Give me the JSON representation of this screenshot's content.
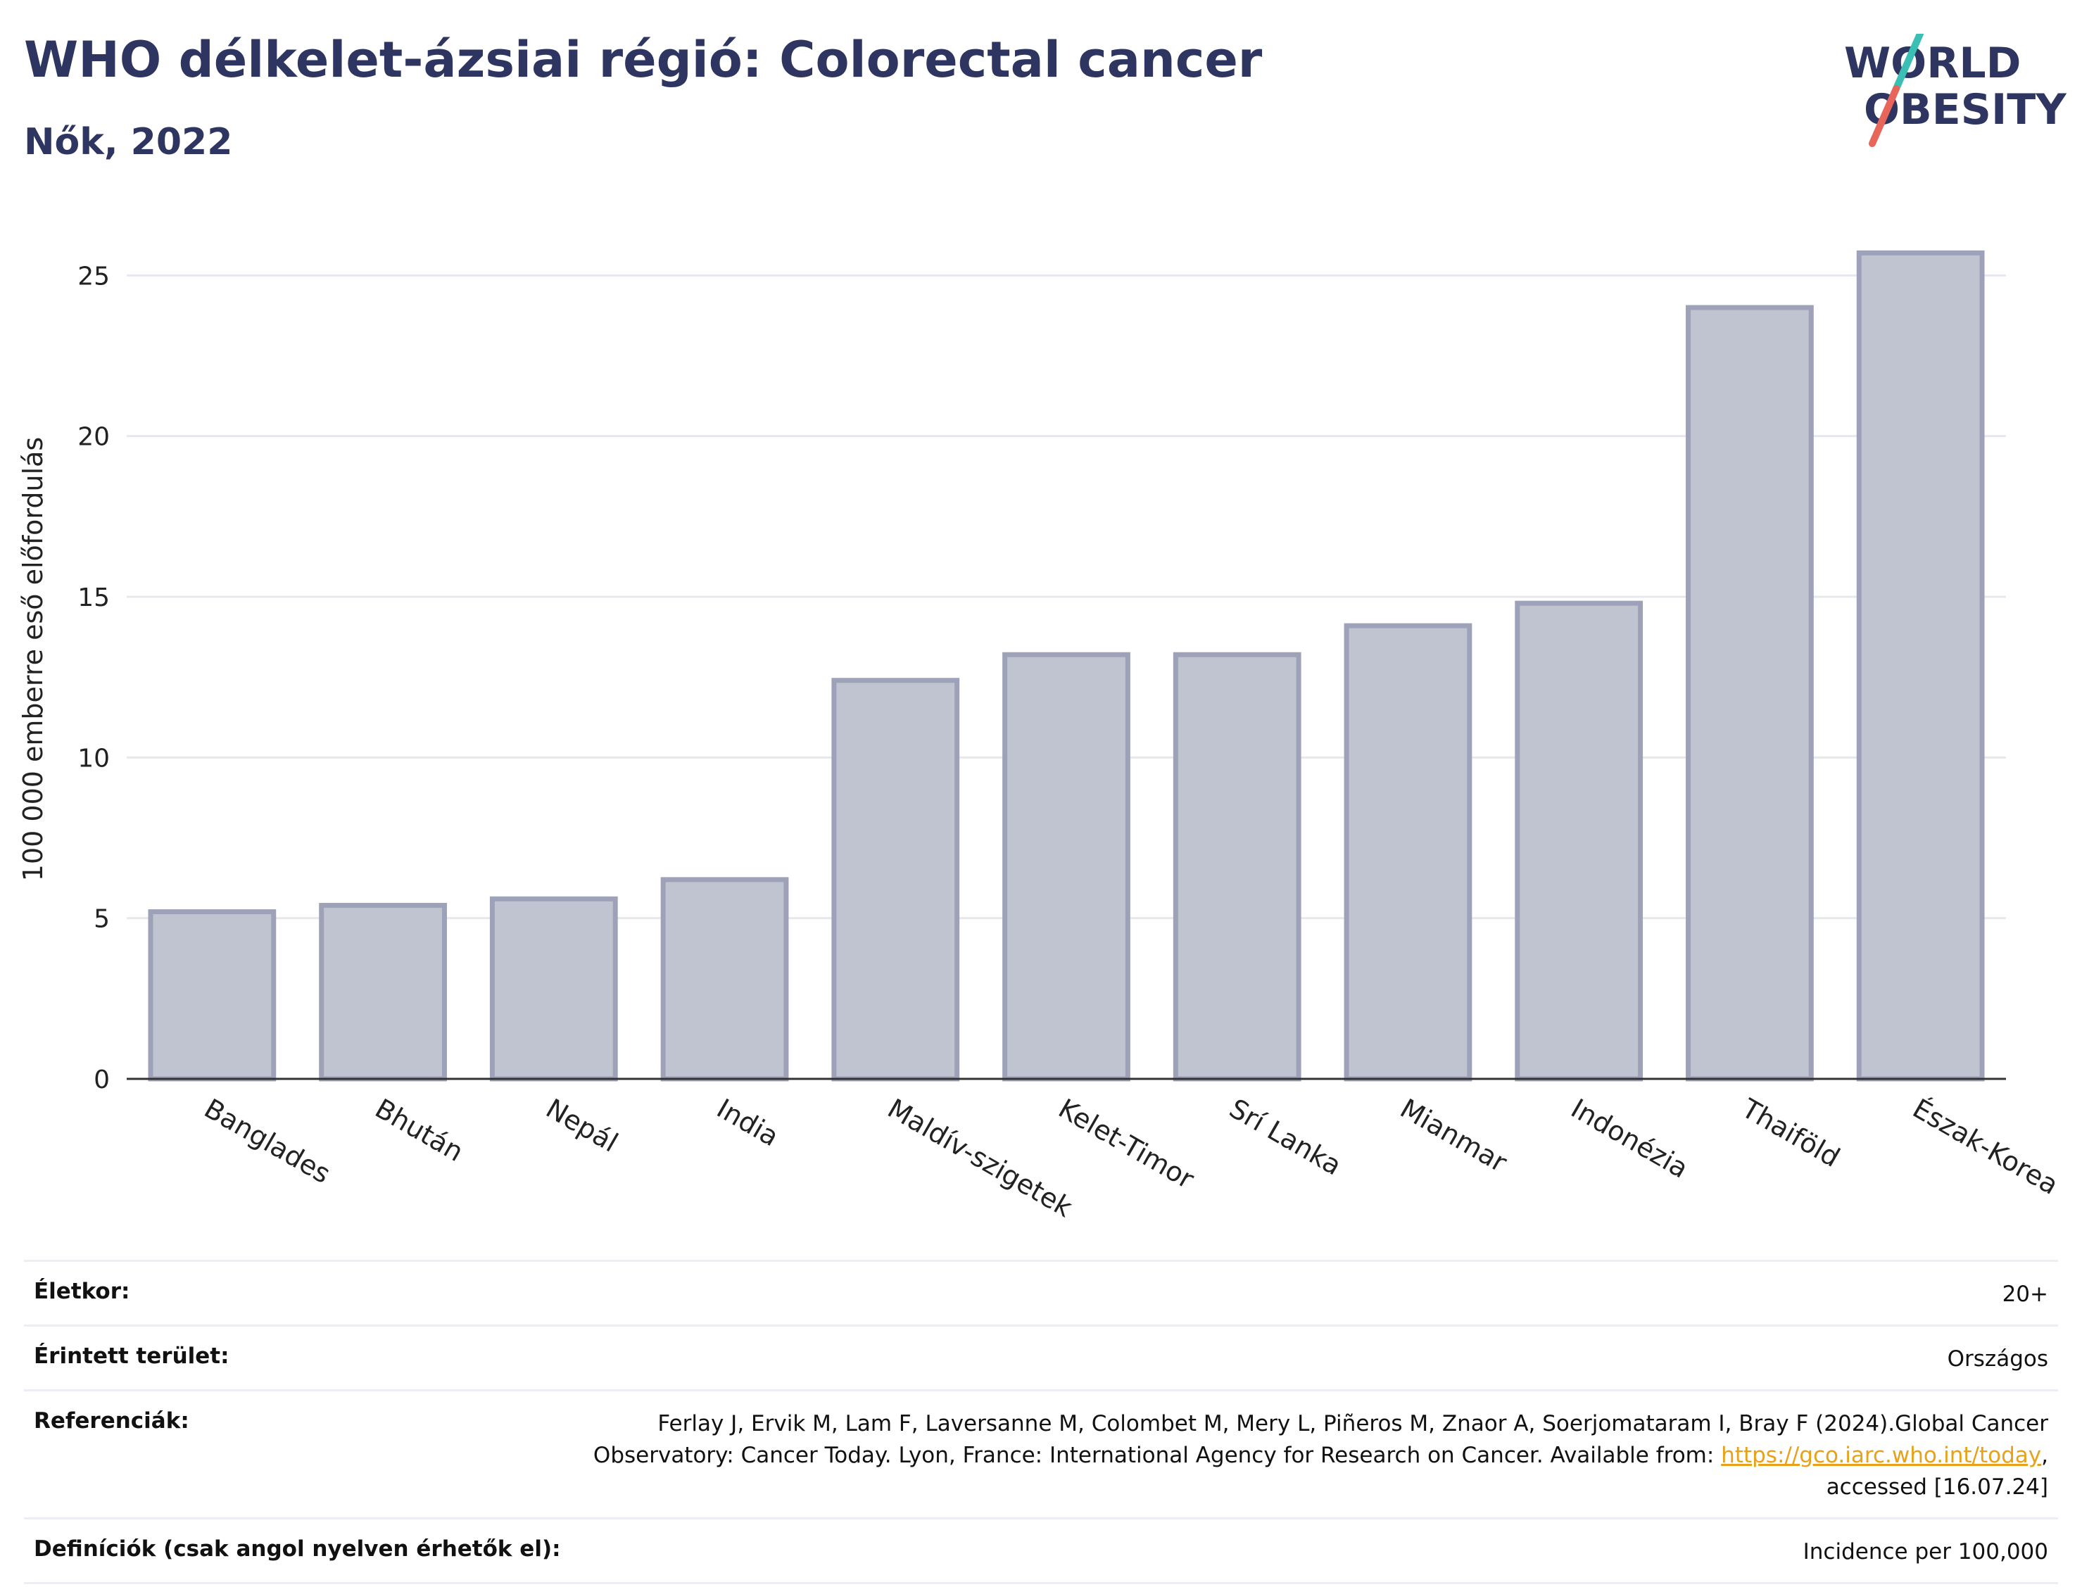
{
  "header": {
    "title": "WHO délkelet-ázsiai régió: Colorectal cancer",
    "subtitle": "Nők, 2022"
  },
  "logo": {
    "line1": "WORLD",
    "line2": "OBESITY",
    "colors": {
      "text": "#2d3560",
      "slash_top": "#3bbfb5",
      "slash_bottom": "#e8655a"
    }
  },
  "chart_data": {
    "type": "bar",
    "categories": [
      "Banglades",
      "Bhután",
      "Nepál",
      "India",
      "Maldív-szigetek",
      "Kelet-Timor",
      "Srí Lanka",
      "Mianmar",
      "Indonézia",
      "Thaiföld",
      "Észak-Korea"
    ],
    "values": [
      5.2,
      5.4,
      5.6,
      6.2,
      12.4,
      13.2,
      13.2,
      14.1,
      14.8,
      24.0,
      25.7
    ],
    "ylabel": "100 000 emberre eső előfordulás",
    "xlabel": "",
    "ylim": [
      0,
      27
    ],
    "yticks": [
      0,
      5,
      10,
      15,
      20,
      25
    ],
    "grid": true,
    "colors": {
      "bar_fill": "#c0c3d0",
      "bar_stroke": "#9da2b8"
    }
  },
  "meta": {
    "rows": [
      {
        "label": "Életkor:",
        "value": "20+"
      },
      {
        "label": "Érintett terület:",
        "value": "Országos"
      },
      {
        "label": "Referenciák:",
        "value_before": "Ferlay J, Ervik M, Lam F, Laversanne M, Colombet M, Mery L, Piñeros M, Znaor A, Soerjomataram I, Bray F (2024).Global Cancer Observatory: Cancer Today. Lyon, France: International Agency for Research on Cancer. Available from: ",
        "link": "https://gco.iarc.who.int/today",
        "value_after": ", accessed [16.07.24]"
      },
      {
        "label": "Definíciók (csak angol nyelven érhetők el):",
        "value": "Incidence per 100,000"
      }
    ]
  }
}
